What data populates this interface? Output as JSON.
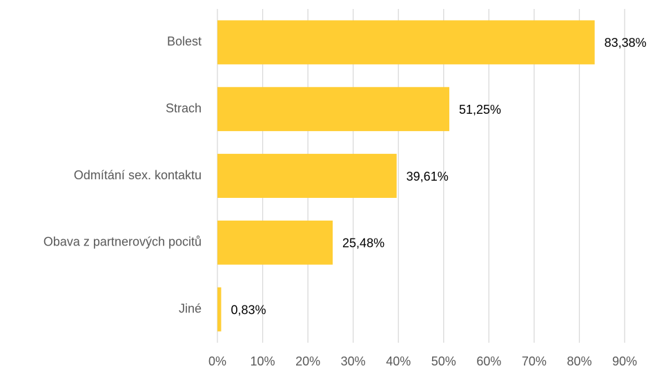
{
  "chart_data": {
    "type": "bar",
    "orientation": "horizontal",
    "categories": [
      "Bolest",
      "Strach",
      "Odmítání sex. kontaktu",
      "Obava z partnerových pocitů",
      "Jiné"
    ],
    "values": [
      83.38,
      51.25,
      39.61,
      25.48,
      0.83
    ],
    "value_labels": [
      "83,38%",
      "51,25%",
      "39,61%",
      "25,48%",
      "0,83%"
    ],
    "color": "#ffcd33",
    "xlim": [
      0,
      90
    ],
    "xticks": [
      {
        "value": 0,
        "label": "0%"
      },
      {
        "value": 10,
        "label": "10%"
      },
      {
        "value": 20,
        "label": "20%"
      },
      {
        "value": 30,
        "label": "30%"
      },
      {
        "value": 40,
        "label": "40%"
      },
      {
        "value": 50,
        "label": "50%"
      },
      {
        "value": 60,
        "label": "60%"
      },
      {
        "value": 70,
        "label": "70%"
      },
      {
        "value": 80,
        "label": "80%"
      },
      {
        "value": 90,
        "label": "90%"
      }
    ],
    "grid": true
  }
}
